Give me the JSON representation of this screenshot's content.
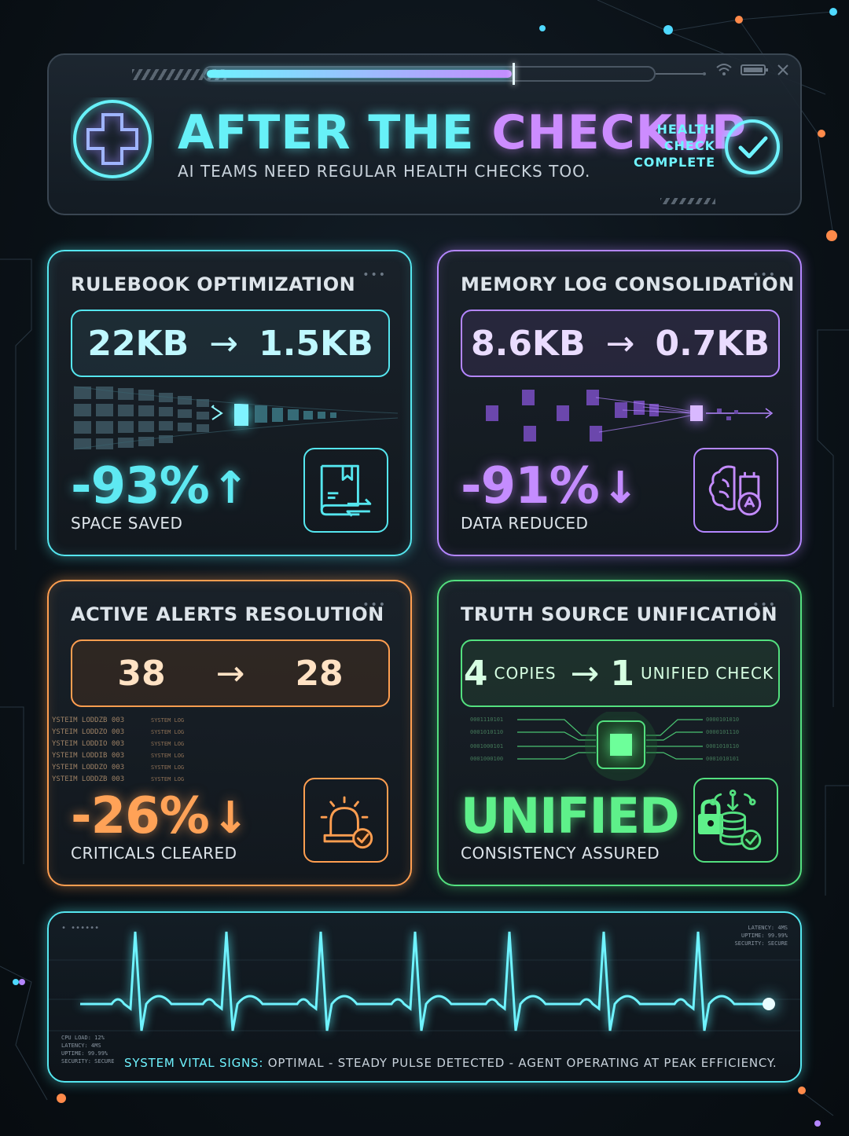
{
  "header": {
    "title_part1": "AFTER THE ",
    "title_part2": "CHECKUP",
    "subtitle": "AI TEAMS NEED REGULAR HEALTH CHECKS TOO.",
    "status_line1": "HEALTH",
    "status_line2": "CHECK",
    "status_line3": "COMPLETE",
    "progress_fraction": 0.68
  },
  "cards": [
    {
      "title": "RULEBOOK OPTIMIZATION",
      "before": "22KB",
      "after": "1.5KB",
      "change": "-93%",
      "change_direction": "up",
      "caption": "SPACE SAVED",
      "icon": "book-transfer-icon",
      "color": "#55e6ef"
    },
    {
      "title": "MEMORY LOG CONSOLIDATION",
      "before": "8.6KB",
      "after": "0.7KB",
      "change": "-91%",
      "change_direction": "down",
      "caption": "DATA REDUCED",
      "icon": "brain-chip-icon",
      "color": "#b486ff"
    },
    {
      "title": "ACTIVE ALERTS RESOLUTION",
      "before": "38",
      "after": "28",
      "change": "-26%",
      "change_direction": "down",
      "caption": "CRITICALS CLEARED",
      "icon": "alarm-check-icon",
      "color": "#ff9e50",
      "log_entries": [
        "YSTEIM LODDZB 003",
        "YSTEIM LODDZO 003",
        "YSTEIM LODDIO 003",
        "YSTEIM LODDIB 003",
        "YSTEIM LODDZO 003",
        "YSTEIM LODDZB 003"
      ],
      "log_text": "SYSTEM LOG"
    },
    {
      "title": "TRUTH SOURCE UNIFICATION",
      "before_count": "4",
      "before_unit": "COPIES",
      "after_count": "1",
      "after_unit": "UNIFIED CHECK",
      "change": "UNIFIED",
      "caption": "CONSISTENCY ASSURED",
      "icon": "database-check-icon",
      "color": "#53e07f"
    }
  ],
  "footer": {
    "label": "SYSTEM VITAL SIGNS:",
    "message": " OPTIMAL - STEADY PULSE DETECTED - AGENT OPERATING AT PEAK EFFICIENCY.",
    "stats_left": [
      "CPU LOAD: 12%",
      "LATENCY: 4MS",
      "UPTIME: 99.99%",
      "SECURITY: SECURE"
    ],
    "stats_right": [
      "LATENCY: 4MS",
      "UPTIME: 99.99%",
      "SECURITY: SECURE"
    ]
  }
}
